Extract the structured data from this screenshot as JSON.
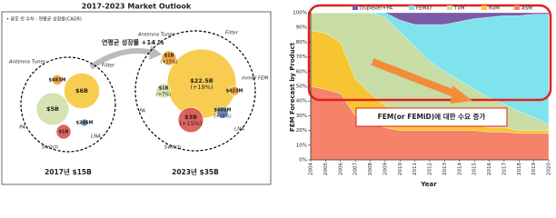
{
  "chart_data": [
    {
      "type": "bubble",
      "title": "2017-2023 Market Outlook",
      "subtitle": "• 괄호 안 수치 : 연평균 성장률(CAGR)",
      "annotation": "연평균 성장률 +14 %",
      "groups": [
        {
          "label": "2017년 $15B",
          "bubbles": [
            {
              "name": "Filter",
              "value": 6,
              "value_label": "$6B",
              "color": "#f7c63d"
            },
            {
              "name": "PA",
              "value": 5,
              "value_label": "$5B",
              "color": "#cfe0a8"
            },
            {
              "name": "Antenna Tuner",
              "value": 0.483,
              "value_label": "$483M",
              "color": "#f0a030"
            },
            {
              "name": "Switch",
              "value": 1,
              "value_label": "$1B",
              "color": "#d9544f"
            },
            {
              "name": "LNA",
              "value": 0.246,
              "value_label": "$246M",
              "color": "#5a7fb0"
            }
          ]
        },
        {
          "label": "2023년 $35B",
          "bubbles": [
            {
              "name": "Filter",
              "value": 22.5,
              "value_label": "$22.5B",
              "growth": "(+19%)",
              "color": "#f7c63d"
            },
            {
              "name": "PA",
              "value": 1,
              "value_label": "$1B",
              "growth": "(+7%)",
              "color": "#cfe0a8"
            },
            {
              "name": "Antenna Tuner",
              "value": 1,
              "value_label": "$1B",
              "growth": "(+15%)",
              "color": "#f0a030"
            },
            {
              "name": "Switch",
              "value": 3,
              "value_label": "$3B",
              "growth": "(+15%)",
              "color": "#d9544f"
            },
            {
              "name": "LNA",
              "value": 0.602,
              "value_label": "$602M",
              "growth": "(+16%)",
              "color": "#5a7fb0"
            },
            {
              "name": "mmW FEM",
              "value": 0.423,
              "value_label": "$423M",
              "color": "#f0a030"
            }
          ]
        }
      ]
    },
    {
      "type": "stacked-area",
      "x_label": "Year",
      "y_label": "FEM Forecast by Product",
      "annotation": "FEM(or FEMiD)에 대한 수요 증가",
      "x": [
        2004,
        2005,
        2006,
        2007,
        2008,
        2009,
        2010,
        2011,
        2012,
        2013,
        2014,
        2015,
        2016,
        2017,
        2018,
        2019,
        2020
      ],
      "xlim": [
        2004,
        2020
      ],
      "xticks": [
        2004,
        2005,
        2006,
        2007,
        2008,
        2009,
        2010,
        2011,
        2012,
        2013,
        2014,
        2015,
        2016,
        2017,
        2018,
        2019,
        2020
      ],
      "ylim": [
        0,
        100
      ],
      "yticks": [
        {
          "value": 0,
          "label": "0%"
        },
        {
          "value": 10,
          "label": "10%"
        },
        {
          "value": 20,
          "label": "20%"
        },
        {
          "value": 30,
          "label": "30%"
        },
        {
          "value": 40,
          "label": "40%"
        },
        {
          "value": 50,
          "label": "50%"
        },
        {
          "value": 60,
          "label": "60%"
        },
        {
          "value": 70,
          "label": "70%"
        },
        {
          "value": 80,
          "label": "80%"
        },
        {
          "value": 90,
          "label": "90%"
        },
        {
          "value": 100,
          "label": "100%"
        }
      ],
      "series": [
        {
          "name": "Duplexer+PA",
          "color": "#7b5aa6",
          "values": [
            0,
            0,
            0,
            0,
            0,
            0,
            5,
            8,
            8,
            8,
            6,
            4,
            3,
            2,
            2,
            1,
            1
          ]
        },
        {
          "name": "FEMiD",
          "color": "#7fe3ee",
          "values": [
            0,
            0,
            0,
            0,
            0,
            3,
            8,
            15,
            25,
            32,
            40,
            48,
            55,
            60,
            65,
            70,
            75
          ]
        },
        {
          "name": "TxM",
          "color": "#c8dca6",
          "values": [
            12,
            14,
            20,
            45,
            55,
            60,
            55,
            47,
            39,
            34,
            29,
            24,
            20,
            16,
            13,
            9,
            4
          ]
        },
        {
          "name": "RxM",
          "color": "#f7c531",
          "values": [
            38,
            38,
            35,
            25,
            20,
            15,
            12,
            10,
            8,
            6,
            5,
            4,
            3,
            3,
            2,
            2,
            2
          ]
        },
        {
          "name": "ASM",
          "color": "#f4836a",
          "values": [
            50,
            48,
            45,
            30,
            25,
            22,
            20,
            20,
            20,
            20,
            20,
            20,
            19,
            19,
            18,
            18,
            18
          ]
        }
      ]
    }
  ]
}
